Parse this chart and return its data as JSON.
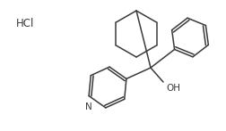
{
  "background_color": "#ffffff",
  "line_color": "#3a3a3a",
  "line_width": 1.1,
  "text_color": "#3a3a3a",
  "hcl_text": "HCl",
  "oh_text": "OH",
  "n_text": "N",
  "figsize": [
    2.52,
    1.47
  ],
  "dpi": 100
}
